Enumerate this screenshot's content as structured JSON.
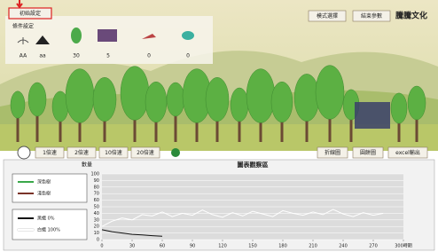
{
  "top_bar": {
    "init_button": "初始設定",
    "condition_label": "條件設定",
    "mode_button": "模式選擇",
    "end_button": "結束參數",
    "logo": "騰騰文化"
  },
  "status": {
    "genotypes": [
      "AA",
      "aa"
    ],
    "counts": [
      30,
      5,
      0,
      0
    ]
  },
  "speed_buttons": [
    "1倍速",
    "2倍速",
    "10倍速",
    "20倍速"
  ],
  "view_buttons": [
    "折線圖",
    "圓餅圖",
    "excel輸出"
  ],
  "chart_data": {
    "type": "line",
    "title": "圖表觀察區",
    "y_label": "數量",
    "xlim": [
      0,
      300
    ],
    "ylim": [
      0,
      100
    ],
    "xticks": [
      0,
      30,
      60,
      90,
      120,
      150,
      180,
      210,
      240,
      270,
      {
        "value": 300,
        "label": "300時期"
      }
    ],
    "yticks": [
      0,
      10,
      20,
      30,
      40,
      50,
      60,
      70,
      80,
      90,
      100
    ],
    "grid": true,
    "tree_legend": [
      {
        "name": "深色樹",
        "color": "#3aa84a"
      },
      {
        "name": "淺色樹",
        "color": "#7a3328"
      }
    ],
    "series": [
      {
        "name": "黑蛾 0%",
        "color": "#111111",
        "x": [
          0,
          10,
          20,
          30,
          40,
          50,
          60
        ],
        "values": [
          15,
          12,
          10,
          8,
          7,
          6,
          5
        ]
      },
      {
        "name": "白蛾 100%",
        "color": "#ffffff",
        "x": [
          0,
          10,
          20,
          30,
          40,
          50,
          60,
          70,
          80,
          90,
          100,
          110,
          120,
          130,
          140,
          150,
          160,
          170,
          180,
          190,
          200,
          210,
          220,
          230,
          240,
          250,
          260,
          270,
          280
        ],
        "values": [
          20,
          28,
          33,
          30,
          38,
          36,
          42,
          35,
          40,
          37,
          45,
          38,
          34,
          41,
          36,
          43,
          39,
          35,
          44,
          40,
          37,
          42,
          38,
          46,
          39,
          35,
          41,
          37,
          40
        ]
      }
    ]
  }
}
